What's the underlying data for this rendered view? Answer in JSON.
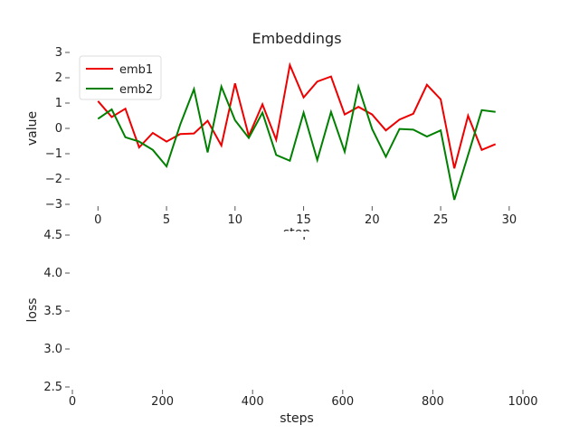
{
  "chart_data": [
    {
      "type": "line",
      "title": "Embeddings",
      "xlabel": "step",
      "ylabel": "value",
      "xlim": [
        -2,
        31
      ],
      "ylim": [
        -3,
        3
      ],
      "xticks": [
        0,
        5,
        10,
        15,
        20,
        25,
        30
      ],
      "yticks": [
        -3,
        -2,
        -1,
        0,
        1,
        2,
        3
      ],
      "ytick_labels": [
        "−3",
        "−2",
        "−1",
        "0",
        "1",
        "2",
        "3"
      ],
      "grid": false,
      "legend_position": "top-left",
      "x": [
        0,
        1,
        2,
        3,
        4,
        5,
        6,
        7,
        8,
        9,
        10,
        11,
        12,
        13,
        14,
        15,
        16,
        17,
        18,
        19,
        20,
        21,
        22,
        23,
        24,
        25,
        26,
        27,
        28,
        29
      ],
      "series": [
        {
          "name": "emb1",
          "color": "#ee0000",
          "values": [
            1.08,
            0.45,
            0.78,
            -0.75,
            -0.18,
            -0.52,
            -0.22,
            -0.2,
            0.3,
            -0.68,
            1.78,
            -0.3,
            0.95,
            -0.45,
            2.5,
            1.22,
            1.85,
            2.05,
            0.55,
            0.85,
            0.55,
            -0.08,
            0.35,
            0.58,
            1.72,
            1.15,
            -1.58,
            0.5,
            -0.85,
            -0.62
          ]
        },
        {
          "name": "emb2",
          "color": "#008000",
          "values": [
            0.38,
            0.75,
            -0.35,
            -0.52,
            -0.85,
            -1.5,
            0.15,
            1.55,
            -0.95,
            1.65,
            0.32,
            -0.38,
            0.62,
            -1.05,
            -1.28,
            0.62,
            -1.25,
            0.65,
            -0.92,
            1.65,
            -0.02,
            -1.12,
            -0.02,
            -0.05,
            -0.32,
            -0.08,
            -2.82,
            -1.05,
            0.72,
            0.65
          ]
        }
      ]
    },
    {
      "type": "line",
      "title": "",
      "xlabel": "steps",
      "ylabel": "loss",
      "xlim": [
        0,
        1000
      ],
      "ylim": [
        2.5,
        4.5
      ],
      "xticks": [
        0,
        200,
        400,
        600,
        800,
        1000
      ],
      "yticks": [
        2.5,
        3.0,
        3.5,
        4.0,
        4.5
      ],
      "ytick_labels": [
        "2.5",
        "3.0",
        "3.5",
        "4.0",
        "4.5"
      ],
      "grid": false,
      "series": []
    }
  ]
}
